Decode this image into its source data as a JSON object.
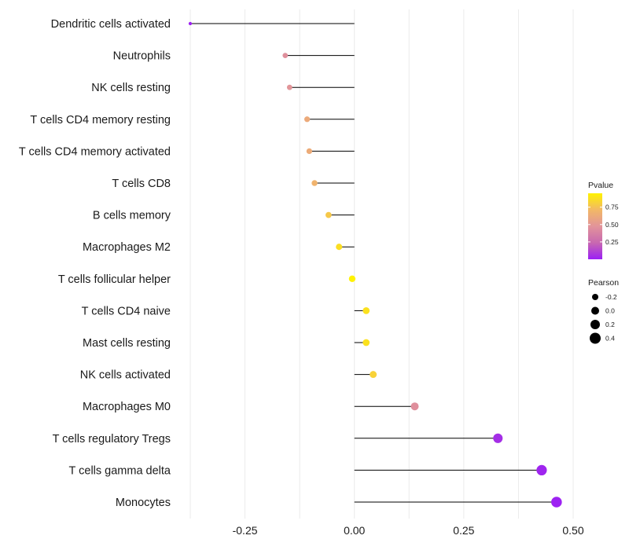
{
  "chart_data": {
    "type": "lollipop",
    "categories": [
      "Dendritic cells activated",
      "Neutrophils",
      "NK cells resting",
      "T cells CD4 memory resting",
      "T cells CD4 memory activated",
      "T cells CD8",
      "B cells memory",
      "Macrophages M2",
      "T cells follicular helper",
      "T cells CD4 naive",
      "Mast cells resting",
      "NK cells activated",
      "Macrophages M0",
      "T cells regulatory  Tregs ",
      "T cells gamma delta",
      "Monocytes"
    ],
    "pearson": [
      -0.375,
      -0.158,
      -0.148,
      -0.108,
      -0.103,
      -0.091,
      -0.059,
      -0.035,
      -0.005,
      0.027,
      0.027,
      0.043,
      0.138,
      0.328,
      0.428,
      0.462
    ],
    "pvalue": [
      0.01,
      0.45,
      0.48,
      0.62,
      0.63,
      0.68,
      0.78,
      0.87,
      0.98,
      0.88,
      0.88,
      0.82,
      0.45,
      0.05,
      0.02,
      0.01
    ],
    "xlim": [
      -0.375,
      0.5
    ],
    "x_ticks": [
      -0.25,
      0.0,
      0.25,
      0.5
    ],
    "x_tick_labels": [
      "-0.25",
      "0.00",
      "0.25",
      "0.50"
    ],
    "xlabel": "",
    "ylabel": "",
    "grid": true,
    "legend_color": {
      "title": "Pvalue",
      "ticks": [
        0.25,
        0.5,
        0.75
      ],
      "tick_labels": [
        "0.25",
        "0.50",
        "0.75"
      ],
      "range": [
        0.0,
        0.95
      ],
      "colors": [
        "#9b1ff5",
        "#c868b0",
        "#e2949a",
        "#f2b866",
        "#fff200"
      ]
    },
    "legend_size": {
      "title": "Pearson",
      "values": [
        -0.2,
        0.0,
        0.2,
        0.4
      ],
      "labels": [
        "-0.2",
        "0.0",
        "0.2",
        "0.4"
      ]
    }
  }
}
